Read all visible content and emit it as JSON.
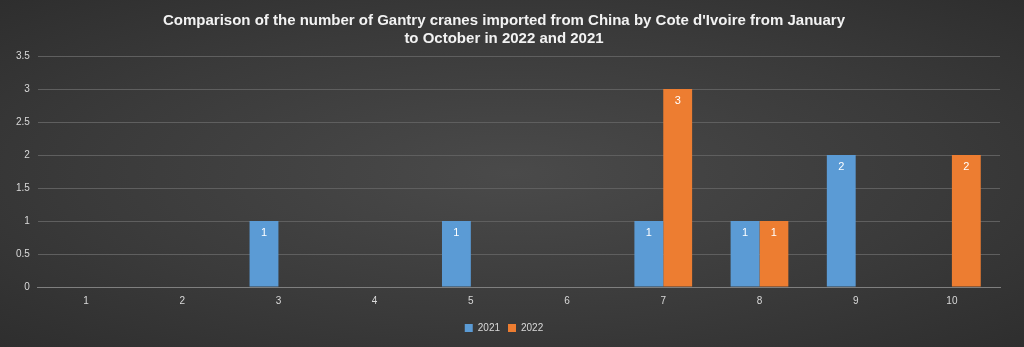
{
  "chart_data": {
    "type": "bar",
    "title": "Comparison of the number of Gantry cranes imported from China by Cote d'Ivoire from January to October in 2022 and 2021",
    "categories": [
      "1",
      "2",
      "3",
      "4",
      "5",
      "6",
      "7",
      "8",
      "9",
      "10"
    ],
    "series": [
      {
        "name": "2021",
        "color": "#5b9bd5",
        "values": [
          null,
          null,
          1,
          null,
          1,
          null,
          1,
          1,
          2,
          null
        ]
      },
      {
        "name": "2022",
        "color": "#ed7d31",
        "values": [
          null,
          null,
          null,
          null,
          null,
          null,
          3,
          1,
          null,
          2
        ]
      }
    ],
    "ylim": [
      0,
      3.5
    ],
    "yticks": [
      0,
      0.5,
      1,
      1.5,
      2,
      2.5,
      3,
      3.5
    ],
    "grid": true,
    "legend": "bottom",
    "data_labels": true
  }
}
